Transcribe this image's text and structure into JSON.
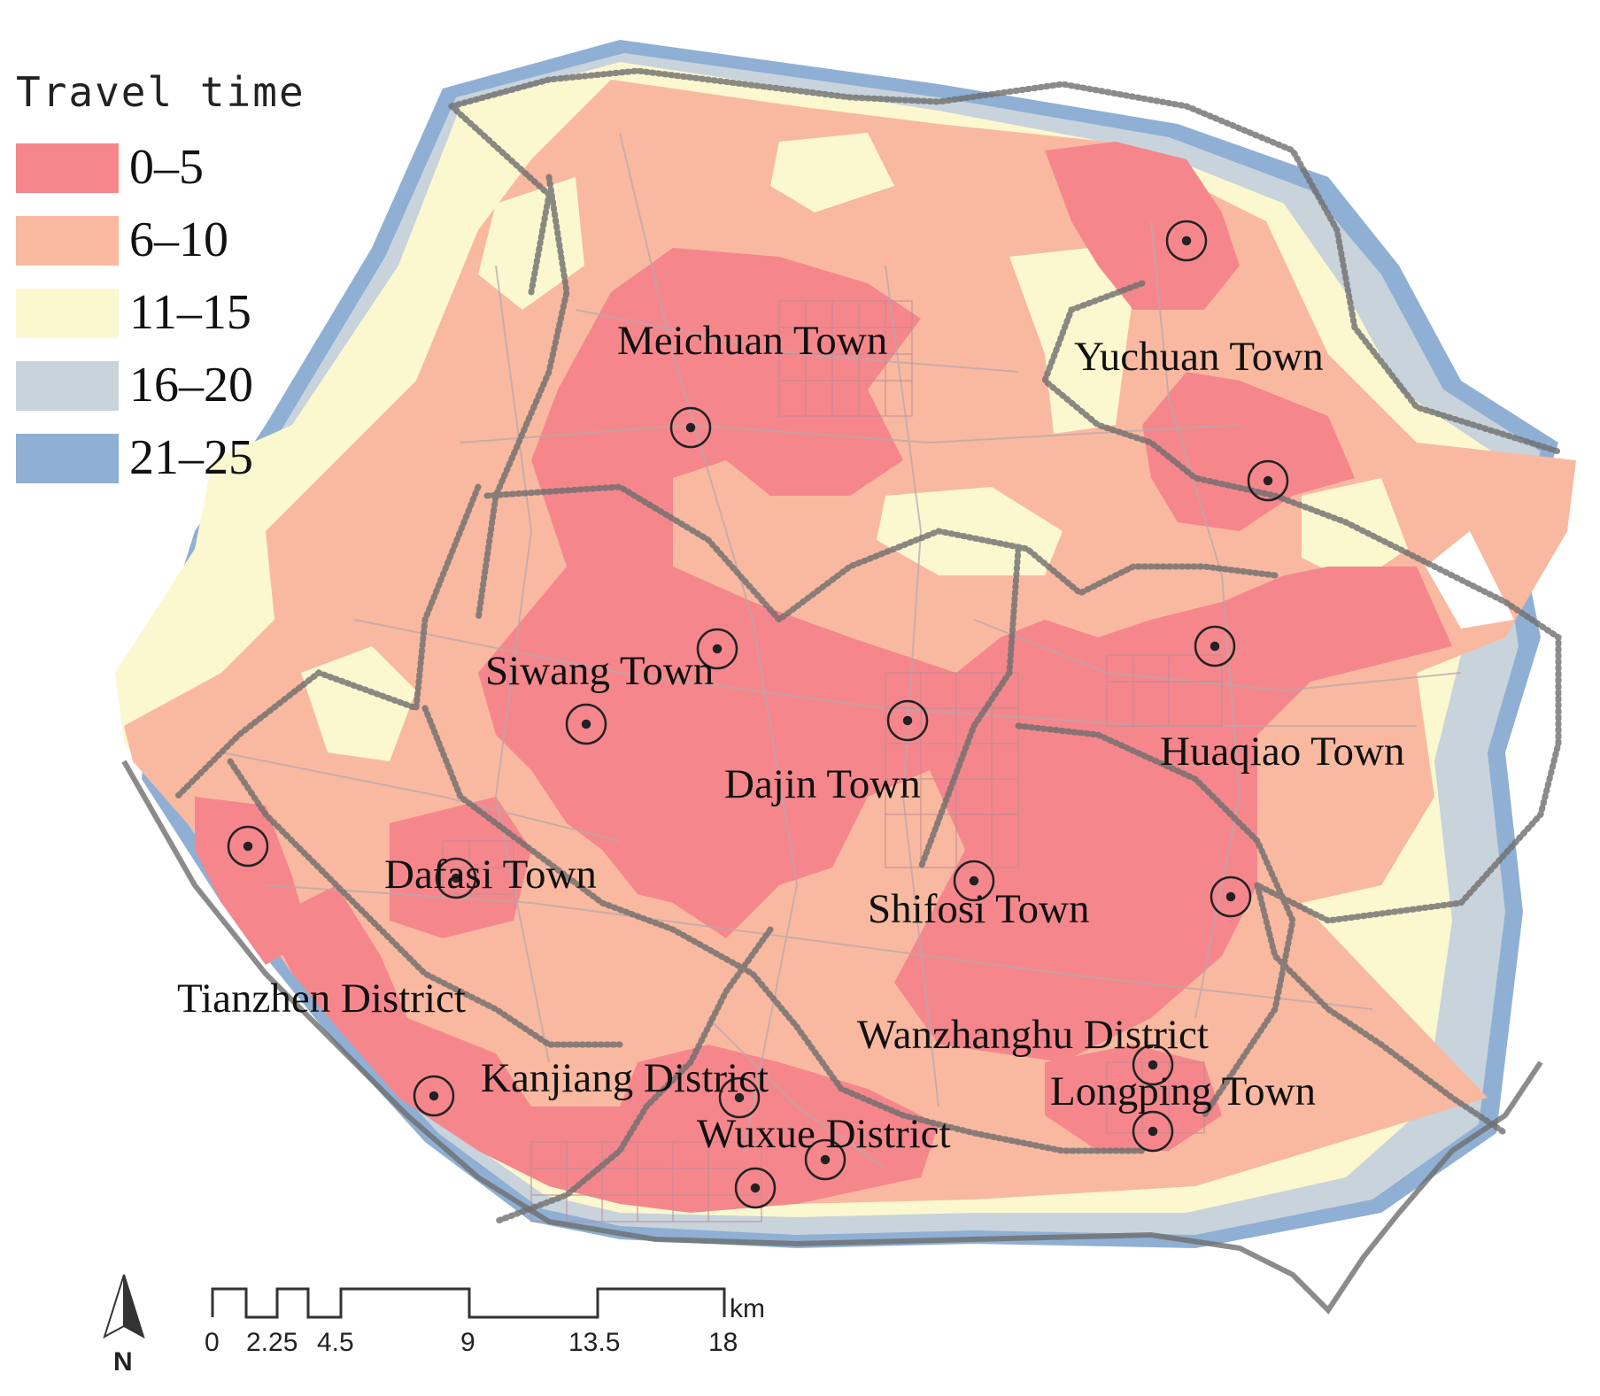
{
  "legend": {
    "title": "Travel time",
    "items": [
      {
        "label": "0–5",
        "color": "#f5878c"
      },
      {
        "label": "6–10",
        "color": "#f9b9a0"
      },
      {
        "label": "11–15",
        "color": "#fbf8d0"
      },
      {
        "label": "16–20",
        "color": "#c9d3dc"
      },
      {
        "label": "21–25",
        "color": "#8fb0d4"
      }
    ]
  },
  "places": [
    {
      "name": "Meichuan Town"
    },
    {
      "name": "Yuchuan Town"
    },
    {
      "name": "Siwang Town"
    },
    {
      "name": "Huaqiao Town"
    },
    {
      "name": "Dajin Town"
    },
    {
      "name": "Dafasi Town"
    },
    {
      "name": "Shifosi Town"
    },
    {
      "name": "Tianzhen District"
    },
    {
      "name": "Wanzhanghu District"
    },
    {
      "name": "Kanjiang District"
    },
    {
      "name": "Longping Town"
    },
    {
      "name": "Wuxue District"
    }
  ],
  "scale_bar": {
    "unit": "km",
    "ticks": [
      "0",
      "2.25",
      "4.5",
      "9",
      "13.5",
      "18"
    ]
  },
  "north_arrow": {
    "label": "N",
    "icon": "north-arrow-icon"
  },
  "colors": {
    "boundary": "#6e6e6e",
    "road": "#b9a8aa",
    "center_marker": "#222222"
  }
}
